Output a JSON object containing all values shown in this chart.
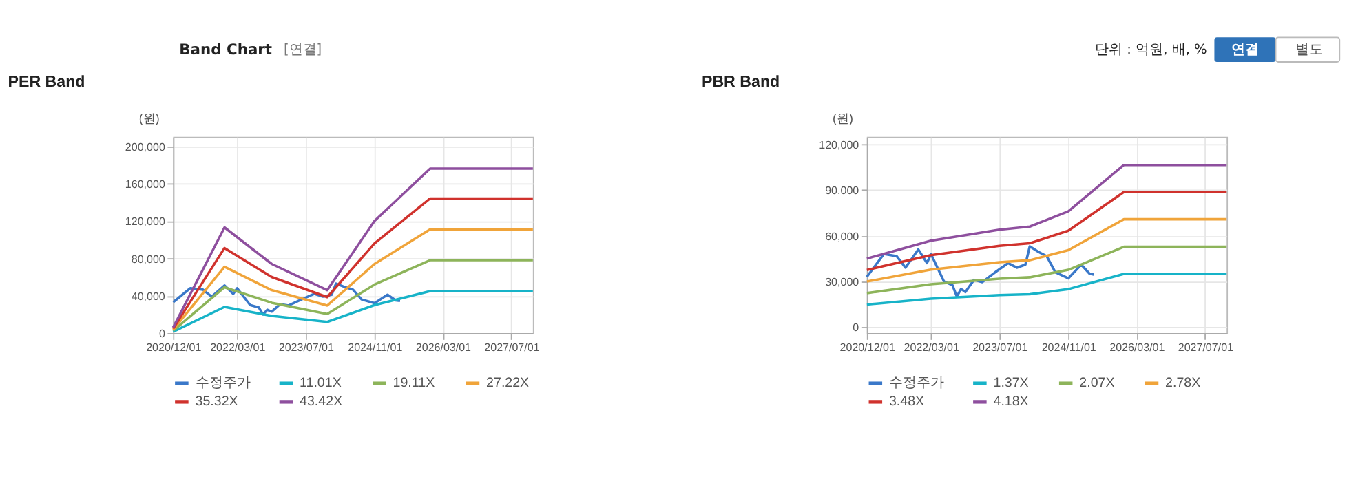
{
  "chart_data": [
    {
      "type": "line",
      "title": "PER Band",
      "ylabel": "(원)",
      "annotations": [
        "Band Chart",
        "[연결]",
        "단위 : 억원, 배, %",
        "연결",
        "별도"
      ],
      "x": [
        "2020-12",
        "2021-12",
        "2022-11",
        "2023-12",
        "2024-11",
        "2025-12",
        "2027-12"
      ],
      "series": [
        {
          "name": "수정주가",
          "color": "#3a78c9",
          "x": [
            "2020-12",
            "2021-04",
            "2021-07",
            "2021-09",
            "2021-12",
            "2022-02",
            "2022-03",
            "2022-06",
            "2022-08",
            "2022-09",
            "2022-10",
            "2022-11",
            "2023-01",
            "2023-03",
            "2023-06",
            "2023-09",
            "2023-11",
            "2024-01",
            "2024-02",
            "2024-04",
            "2024-06",
            "2024-08",
            "2024-11",
            "2025-02",
            "2025-04",
            "2025-05"
          ],
          "values": [
            33000,
            48000,
            46500,
            39000,
            51000,
            42000,
            48000,
            30000,
            27500,
            20000,
            25000,
            23000,
            31000,
            29500,
            36000,
            42000,
            39000,
            41000,
            53000,
            49500,
            46500,
            36000,
            32000,
            41000,
            35000,
            34500
          ]
        },
        {
          "name": "11.01X",
          "color": "#17b3c8",
          "values": [
            1500,
            28000,
            18500,
            12000,
            30000,
            45000,
            45000
          ]
        },
        {
          "name": "19.11X",
          "color": "#8db45a",
          "values": [
            2600,
            49000,
            32500,
            20500,
            52000,
            78000,
            78000
          ]
        },
        {
          "name": "27.22X",
          "color": "#f0a43a",
          "values": [
            3700,
            71000,
            46000,
            29500,
            74000,
            111000,
            111000
          ]
        },
        {
          "name": "35.32X",
          "color": "#d0322d",
          "values": [
            4800,
            91000,
            60000,
            38500,
            96000,
            144000,
            144000
          ]
        },
        {
          "name": "43.42X",
          "color": "#8e4f9e",
          "values": [
            6000,
            113000,
            74000,
            46000,
            120000,
            176000,
            176000
          ]
        }
      ],
      "xlim": [
        "2020-12",
        "2027-12"
      ],
      "xticks": [
        {
          "value": "2020-12-01",
          "label": "2020/12/01"
        },
        {
          "value": "2022-03-01",
          "label": "2022/03/01"
        },
        {
          "value": "2023-07-01",
          "label": "2023/07/01"
        },
        {
          "value": "2024-11-01",
          "label": "2024/11/01"
        },
        {
          "value": "2026-03-01",
          "label": "2026/03/01"
        },
        {
          "value": "2027-07-01",
          "label": "2027/07/01"
        }
      ],
      "ylim": [
        0,
        210000
      ],
      "yticks": [
        0,
        {
          "value": 40000,
          "label": "40,000"
        },
        {
          "value": 80000,
          "label": "80,000"
        },
        {
          "value": 120000,
          "label": "120,000"
        },
        {
          "value": 160000,
          "label": "160,000"
        },
        {
          "value": 200000,
          "label": "200,000"
        }
      ],
      "grid": true,
      "legend": "bottom"
    },
    {
      "type": "line",
      "title": "PBR Band",
      "ylabel": "(원)",
      "x": [
        "2020-12",
        "2022-03",
        "2023-07",
        "2024-02",
        "2024-11",
        "2025-12",
        "2027-12"
      ],
      "series": [
        {
          "name": "수정주가",
          "color": "#3a78c9",
          "x": [
            "2020-12",
            "2021-04",
            "2021-07",
            "2021-09",
            "2021-12",
            "2022-02",
            "2022-03",
            "2022-06",
            "2022-08",
            "2022-09",
            "2022-10",
            "2022-11",
            "2023-01",
            "2023-03",
            "2023-06",
            "2023-09",
            "2023-11",
            "2024-01",
            "2024-02",
            "2024-04",
            "2024-06",
            "2024-08",
            "2024-11",
            "2025-02",
            "2025-04",
            "2025-05"
          ],
          "values": [
            33000,
            48000,
            46500,
            39000,
            51000,
            42000,
            48000,
            30000,
            27500,
            20000,
            25000,
            23000,
            31000,
            29500,
            36000,
            42000,
            39000,
            41000,
            53000,
            49500,
            46500,
            36000,
            32000,
            41000,
            35000,
            34500
          ]
        },
        {
          "name": "1.37X",
          "color": "#17b3c8",
          "values": [
            14800,
            18600,
            21000,
            21600,
            24900,
            34900,
            34900
          ]
        },
        {
          "name": "2.07X",
          "color": "#8db45a",
          "values": [
            22300,
            28100,
            31700,
            32700,
            37600,
            52700,
            52700
          ]
        },
        {
          "name": "2.78X",
          "color": "#f0a43a",
          "values": [
            29900,
            37700,
            42600,
            43900,
            50500,
            70800,
            70800
          ]
        },
        {
          "name": "3.48X",
          "color": "#d0322d",
          "values": [
            37500,
            47200,
            53300,
            55000,
            63300,
            88700,
            88700
          ]
        },
        {
          "name": "4.18X",
          "color": "#8e4f9e",
          "values": [
            45000,
            56700,
            64000,
            66000,
            76000,
            106500,
            106500
          ]
        }
      ],
      "xlim": [
        "2020-12",
        "2027-12"
      ],
      "xticks": [
        {
          "value": "2020-12-01",
          "label": "2020/12/01"
        },
        {
          "value": "2022-03-01",
          "label": "2022/03/01"
        },
        {
          "value": "2023-07-01",
          "label": "2023/07/01"
        },
        {
          "value": "2024-11-01",
          "label": "2024/11/01"
        },
        {
          "value": "2026-03-01",
          "label": "2026/03/01"
        },
        {
          "value": "2027-07-01",
          "label": "2027/07/01"
        }
      ],
      "ylim": [
        -4000,
        125000
      ],
      "yticks": [
        0,
        {
          "value": 30000,
          "label": "30,000"
        },
        {
          "value": 60000,
          "label": "60,000"
        },
        {
          "value": 90000,
          "label": "90,000"
        },
        {
          "value": 120000,
          "label": "120,000"
        }
      ],
      "grid": true,
      "legend": "bottom"
    }
  ]
}
